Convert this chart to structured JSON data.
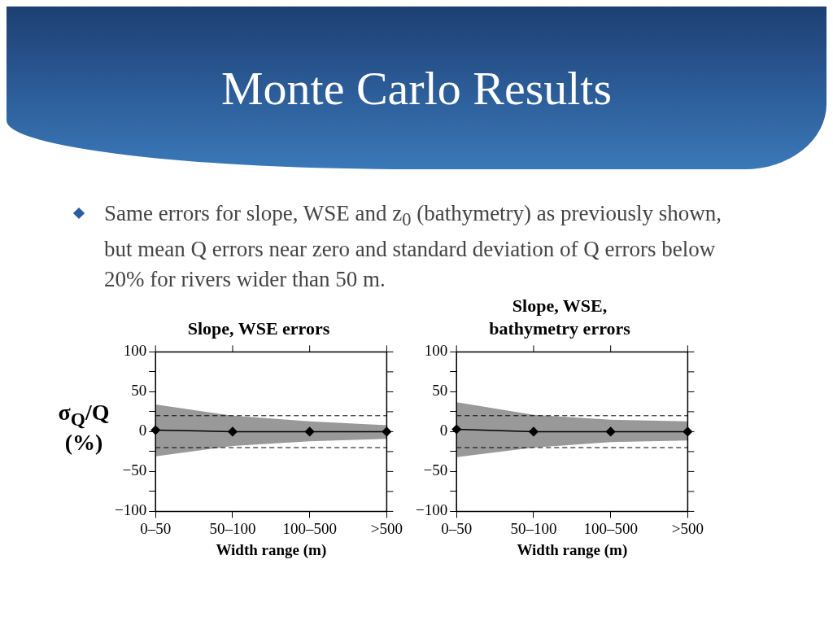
{
  "chart_data": [
    {
      "type": "other",
      "title": "Monte Carlo Results",
      "annotations": [
        "Same errors for slope, WSE and z$_{0}$ (bathymetry) as previously shown, but mean Q errors near zero and standard deviation of Q errors below 20% for rivers wider than 50 m."
      ]
    },
    {
      "type": "line",
      "title": "Slope, WSE errors",
      "xlabel": "Width range (m)",
      "ylabel": "σ$_{Q}$/Q (%)",
      "grid": false,
      "categories": [
        "0–50",
        "50–100",
        "100–500",
        ">500"
      ],
      "ylim": [
        -100,
        100
      ],
      "yticks": [
        -100,
        {
          "value": -75,
          "label": null
        },
        -50,
        {
          "value": -25,
          "label": null
        },
        0,
        {
          "value": 25,
          "label": null
        },
        50,
        {
          "value": 75,
          "label": null
        },
        100
      ],
      "ref_lines": [
        {
          "axis": "y",
          "value": 20,
          "line_style": "dashed",
          "color": "#000000"
        },
        {
          "axis": "y",
          "value": -20,
          "line_style": "dashed",
          "color": "#000000"
        }
      ],
      "series": [
        {
          "color": "#000000",
          "marker": "diamond",
          "values": [
            2,
            0,
            0,
            0
          ],
          "lower": [
            -31,
            -18,
            -12,
            -9
          ],
          "upper": [
            34,
            20,
            13,
            8
          ]
        }
      ]
    },
    {
      "type": "line",
      "title": "Slope, WSE, bathymetry errors",
      "xlabel": "Width range (m)",
      "grid": false,
      "categories": [
        "0–50",
        "50–100",
        "100–500",
        ">500"
      ],
      "ylim": [
        -100,
        100
      ],
      "yticks": [
        -100,
        {
          "value": -75,
          "label": null
        },
        -50,
        {
          "value": -25,
          "label": null
        },
        0,
        {
          "value": 25,
          "label": null
        },
        50,
        {
          "value": 75,
          "label": null
        },
        100
      ],
      "ref_lines": [
        {
          "axis": "y",
          "value": 20,
          "line_style": "dashed",
          "color": "#000000"
        },
        {
          "axis": "y",
          "value": -20,
          "line_style": "dashed",
          "color": "#000000"
        }
      ],
      "series": [
        {
          "color": "#000000",
          "marker": "diamond",
          "values": [
            3,
            0,
            0,
            0
          ],
          "lower": [
            -32,
            -20,
            -13,
            -11
          ],
          "upper": [
            37,
            21,
            15,
            13
          ]
        }
      ]
    }
  ]
}
